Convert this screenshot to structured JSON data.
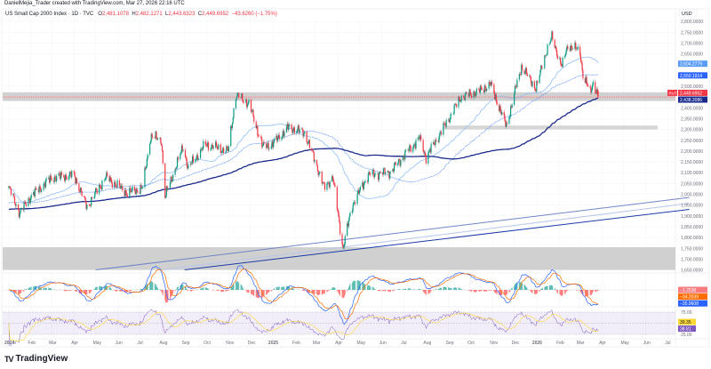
{
  "header": {
    "credit": "DanielMejia_Trader created with TradingView.com, Mar 27, 2026 22:16 UTC",
    "symbol": "US Small Cap 2000 Index · 1D · TVC",
    "open_label": "O",
    "open": "2,481.1078",
    "high_label": "H",
    "high": "2,482.1271",
    "low_label": "L",
    "low": "2,443.6323",
    "close_label": "C",
    "close": "2,449.6952",
    "change": "−43.6260 (−1.75%)"
  },
  "price_axis": {
    "currency": "USD",
    "ticks": [
      "2,800.0000",
      "2,750.0000",
      "2,700.0000",
      "2,650.0000",
      "2,500.0000",
      "2,400.0000",
      "2,350.0000",
      "2,300.0000",
      "2,250.0000",
      "2,200.0000",
      "2,150.0000",
      "2,100.0000",
      "2,050.0000",
      "2,000.0000",
      "1,950.0000",
      "1,900.0000",
      "1,850.0000",
      "1,800.0000",
      "1,750.0000",
      "1,700.0000",
      "1,650.0000"
    ],
    "tick_values": [
      2800,
      2750,
      2700,
      2650,
      2500,
      2400,
      2350,
      2300,
      2250,
      2200,
      2150,
      2100,
      2050,
      2000,
      1950,
      1900,
      1850,
      1800,
      1750,
      1700,
      1650
    ],
    "badges": [
      {
        "text": "2,604.2779",
        "value": 2604.2779,
        "color": "#5b9cf6"
      },
      {
        "text": "2,550.1914",
        "value": 2550.1914,
        "color": "#2962ff"
      },
      {
        "text": "2,449.6952",
        "value": 2449.6952,
        "color": "#f23645",
        "tag": "RUT"
      },
      {
        "text": "2,438.2086",
        "value": 2438.2086,
        "color": "#1a2a8c"
      }
    ]
  },
  "macd": {
    "badges": [
      {
        "text": "−1.2538",
        "color": "#f77c80"
      },
      {
        "text": "−34.2039",
        "color": "#ff6d00"
      },
      {
        "text": "−35.9608",
        "color": "#2962ff"
      }
    ]
  },
  "rsi": {
    "upper": "75.00",
    "lower": "25.00",
    "badges": [
      {
        "text": "39.35",
        "color": "#fdd835",
        "text_color": "#131722"
      },
      {
        "text": "38.81",
        "color": "#7e57c2",
        "text_color": "#ffffff"
      }
    ]
  },
  "time_axis": [
    {
      "label": "2024",
      "date": "2024-01-02",
      "bold": true
    },
    {
      "label": "Feb",
      "date": "2024-02-01"
    },
    {
      "label": "Mar",
      "date": "2024-03-01"
    },
    {
      "label": "Apr",
      "date": "2024-04-01"
    },
    {
      "label": "May",
      "date": "2024-05-01"
    },
    {
      "label": "Jun",
      "date": "2024-06-01"
    },
    {
      "label": "Jul",
      "date": "2024-07-01"
    },
    {
      "label": "Aug",
      "date": "2024-08-01"
    },
    {
      "label": "Sep",
      "date": "2024-09-01"
    },
    {
      "label": "Oct",
      "date": "2024-10-01"
    },
    {
      "label": "Nov",
      "date": "2024-11-01"
    },
    {
      "label": "Dec",
      "date": "2024-12-01"
    },
    {
      "label": "2025",
      "date": "2025-01-01",
      "bold": true
    },
    {
      "label": "Feb",
      "date": "2025-02-01"
    },
    {
      "label": "Mar",
      "date": "2025-03-01"
    },
    {
      "label": "Apr",
      "date": "2025-04-01"
    },
    {
      "label": "May",
      "date": "2025-05-01"
    },
    {
      "label": "Jun",
      "date": "2025-06-01"
    },
    {
      "label": "Jul",
      "date": "2025-07-01"
    },
    {
      "label": "Aug",
      "date": "2025-08-01"
    },
    {
      "label": "Sep",
      "date": "2025-09-01"
    },
    {
      "label": "Oct",
      "date": "2025-10-01"
    },
    {
      "label": "Nov",
      "date": "2025-11-01"
    },
    {
      "label": "Dec",
      "date": "2025-12-01"
    },
    {
      "label": "2026",
      "date": "2026-01-01",
      "bold": true
    },
    {
      "label": "Feb",
      "date": "2026-02-01"
    },
    {
      "label": "Mar",
      "date": "2026-03-01"
    },
    {
      "label": "Apr",
      "date": "2026-04-01"
    },
    {
      "label": "May",
      "date": "2026-05-01"
    },
    {
      "label": "Jun",
      "date": "2026-06-01"
    },
    {
      "label": "Jul",
      "date": "2026-07-01"
    }
  ],
  "chart_data": {
    "type": "candlestick",
    "symbol": "RUT",
    "interval": "1D",
    "ylim": [
      1640,
      2810
    ],
    "grid": true,
    "close_path": [
      [
        "2024-01-02",
        2030
      ],
      [
        "2024-01-17",
        1913
      ],
      [
        "2024-02-01",
        1990
      ],
      [
        "2024-03-01",
        2076
      ],
      [
        "2024-04-01",
        2090
      ],
      [
        "2024-04-19",
        1942
      ],
      [
        "2024-05-15",
        2080
      ],
      [
        "2024-06-14",
        2005
      ],
      [
        "2024-07-05",
        2030
      ],
      [
        "2024-07-16",
        2270
      ],
      [
        "2024-07-31",
        2250
      ],
      [
        "2024-08-05",
        1990
      ],
      [
        "2024-08-30",
        2220
      ],
      [
        "2024-09-06",
        2120
      ],
      [
        "2024-09-30",
        2230
      ],
      [
        "2024-10-31",
        2200
      ],
      [
        "2024-11-11",
        2460
      ],
      [
        "2024-11-29",
        2420
      ],
      [
        "2024-12-18",
        2220
      ],
      [
        "2024-12-31",
        2230
      ],
      [
        "2025-01-23",
        2310
      ],
      [
        "2025-02-14",
        2285
      ],
      [
        "2025-02-28",
        2160
      ],
      [
        "2025-03-13",
        2030
      ],
      [
        "2025-03-25",
        2080
      ],
      [
        "2025-04-08",
        1750
      ],
      [
        "2025-04-21",
        1950
      ],
      [
        "2025-05-13",
        2090
      ],
      [
        "2025-06-13",
        2105
      ],
      [
        "2025-06-30",
        2175
      ],
      [
        "2025-07-23",
        2260
      ],
      [
        "2025-08-01",
        2170
      ],
      [
        "2025-08-29",
        2330
      ],
      [
        "2025-09-18",
        2450
      ],
      [
        "2025-10-15",
        2480
      ],
      [
        "2025-10-29",
        2510
      ],
      [
        "2025-11-20",
        2315
      ],
      [
        "2025-12-03",
        2490
      ],
      [
        "2025-12-11",
        2590
      ],
      [
        "2025-12-31",
        2490
      ],
      [
        "2026-01-14",
        2660
      ],
      [
        "2026-01-22",
        2726
      ],
      [
        "2026-02-05",
        2590
      ],
      [
        "2026-02-13",
        2690
      ],
      [
        "2026-03-02",
        2660
      ],
      [
        "2026-03-06",
        2550
      ],
      [
        "2026-03-16",
        2470
      ],
      [
        "2026-03-20",
        2520
      ],
      [
        "2026-03-27",
        2449.6952
      ]
    ],
    "moving_averages": [
      {
        "period": 50,
        "color": "#90bff9",
        "style": "solid"
      },
      {
        "period": 100,
        "color": "#5b8ff9",
        "style": "dotted"
      },
      {
        "period": 200,
        "color": "#1a2a8c",
        "style": "solid"
      }
    ],
    "zones": [
      {
        "from": 2432,
        "to": 2472
      },
      {
        "from": 2300,
        "to": 2318
      },
      {
        "from": 1650,
        "to": 1755
      }
    ],
    "trendlines": [
      {
        "start": [
          "2024-05-01",
          1650
        ],
        "end": [
          "2026-07-31",
          1985
        ],
        "color": "#6f86c8"
      },
      {
        "start": [
          "2024-08-01",
          1650
        ],
        "end": [
          "2026-07-31",
          1958
        ],
        "color": "#b8c6ea"
      },
      {
        "start": [
          "2024-09-01",
          1650
        ],
        "end": [
          "2026-07-31",
          1930
        ],
        "color": "#1a3aa8"
      }
    ],
    "up_color": "#089981",
    "down_color": "#f23645"
  }
}
